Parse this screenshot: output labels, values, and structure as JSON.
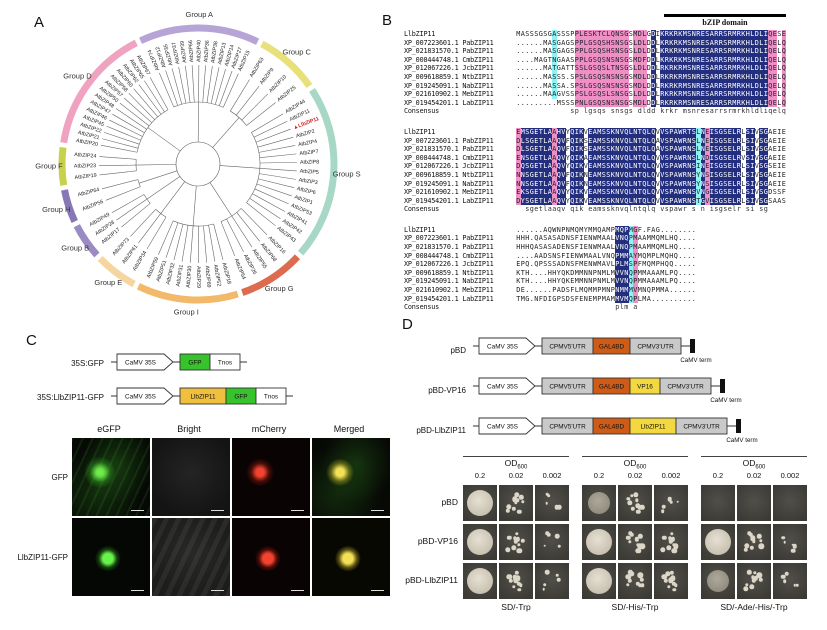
{
  "panelA": {
    "label": "A",
    "highlight_gene": "LlbZIP11",
    "highlight_color": "#d42020",
    "tree_groups": [
      {
        "name": "Group A",
        "color": "#b7a4d6",
        "start": -25,
        "end": 26,
        "genes": [
          "AtbZIP74",
          "AtbZIP12",
          "AtbZIP35",
          "AtbZIP37",
          "AtbZIP39",
          "AtbZIP66",
          "AtbZIP40",
          "AtbZIP36",
          "AtbZIP38",
          "AtbZIP13",
          "AtbZIP14",
          "AtbZIP27",
          "AtbZIP15"
        ]
      },
      {
        "name": "Group C",
        "color": "#e8e07a",
        "start": 28,
        "end": 55,
        "genes": [
          "AtbZIP63",
          "AtbZIP9",
          "AtbZIP10",
          "AtbZIP25"
        ]
      },
      {
        "name": "Group S",
        "color": "#a7d7c5",
        "start": 57,
        "end": 131,
        "genes": [
          "AtbZIP44",
          "AtbZIP11",
          "LlbZIP11",
          "AtbZIP2",
          "AtbZIP4",
          "AtbZIP7",
          "AtbZIP8",
          "AtbZIP5",
          "AtbZIP3",
          "AtbZIP6",
          "AtbZIP1",
          "AtbZIP53",
          "AtbZIP41",
          "AtbZIP42",
          "AtbZIP43"
        ]
      },
      {
        "name": "Group G",
        "color": "#dd6b4f",
        "start": 133,
        "end": 161,
        "genes": [
          "AtbZIP16",
          "AtbZIP68",
          "AtbZIP55",
          "AtbZIP26",
          "AtbZIP54"
        ]
      },
      {
        "name": "Group I",
        "color": "#f2b96a",
        "start": 163,
        "end": 206,
        "genes": [
          "AtbZIP18",
          "AtbZIP52",
          "AtbZIP69",
          "AtbZIP29",
          "AtbZIP30",
          "AtbZIP31",
          "AtbZIP32",
          "AtbZIP51",
          "AtbZIP59"
        ]
      },
      {
        "name": "Group E",
        "color": "#f6d6a0",
        "start": 208,
        "end": 226,
        "genes": [
          "AtbZIP34",
          "AtbZIP61",
          "AtbZIP73"
        ]
      },
      {
        "name": "Group B",
        "color": "#9a8cc2",
        "start": 228,
        "end": 243,
        "genes": [
          "AtbZIP17",
          "AtbZIP28",
          "AtbZIP49"
        ]
      },
      {
        "name": "Group H",
        "color": "#8877b5",
        "start": 245,
        "end": 259,
        "genes": [
          "AtbZIP56",
          "AtbZIP64"
        ]
      },
      {
        "name": "Group F",
        "color": "#c6d24c",
        "start": 261,
        "end": 277,
        "genes": [
          "AtbZIP19",
          "AtbZIP23",
          "AtbZIP24"
        ]
      },
      {
        "name": "Group D",
        "color": "#efa3c0",
        "start": 279,
        "end": 333,
        "genes": [
          "AtbZIP20",
          "AtbZIP21",
          "AtbZIP22",
          "AtbZIP45",
          "AtbZIP46",
          "AtbZIP47",
          "AtbZIP48",
          "AtbZIP50",
          "AtbZIP57",
          "AtbZIP58",
          "AtbZIP60",
          "AtbZIP62",
          "AtbZIP65",
          "AtbZIP67"
        ]
      }
    ]
  },
  "panelB": {
    "label": "B",
    "domain_label": "bZIP domain",
    "names": [
      "LlbZIP11",
      "XP_007223601.1 PabZIP11",
      "XP_021831570.1 PabZIP11",
      "XP_008444748.1 CmbZIP11",
      "XP_012067226.1 JcbZIP11",
      "XP_009618859.1 NtbZIP11",
      "XP_019245091.1 NabZIP11",
      "XP_021610902.1 MebZIP11",
      "XP_019454201.1 LabZIP11",
      "Consensus"
    ],
    "colors_legend": {
      "identity": "#232f7e",
      "similar_high": "#ef8fc6",
      "similar_low": "#8df3f3"
    },
    "blocks": [
      {
        "rows": [
          "MASSSGSGASSSPPLESKTCLQNSGSMDLGDIKRKRKMSNRESARRSRMRKHLDLIQESE",
          "......MASGAGSPPLGSQSHSNSGSLDLDDLKRKRKMSNRESARRSRMRKHLDLIQELQ",
          "......MASGAGSPPLGSQSHSNSGSLDLDDLKRKRKMSNRESARRSRMRKHLDLIQELQ",
          "....MAGTNGAASPPLGSQSNSNSGSMDFDDLKRKRKMSNRESARRSRMRKHLDLIQELQ",
          "......MATGATTSSLGSQSLTNSGSLDLDDLRKRKRMSNRESARRSRMRKHLDLIQELQ",
          "......MASSS.SPSLGSQSNSNSGSMDLDDLRKRKRMSNRESARRSRMRKHLDLIQELQ",
          "......MASSA.SPSLGSQSNSNSGSMDLDDLRKRKRMSNRESARRSRMRKHLDLIQELQ",
          "......MAAGVSSPSLGSQSLSNSGSLDLDDLRKRKRMSNRESARRSRMRKHLDLIQELQ",
          ".........MSSSPNLGSQSNSNSGSMDLDDLRKRKRMSNRESARRSRMRKHLDLIQELQ"
        ],
        "consensus": "            sp lgsqs snsgs dldd krkr msnresarrsrmrkhldliqelq",
        "colors": "wwwwwwwwcwwwwppppppppppppwpppwdwddddddddddddddddddddddddppwp"
      },
      {
        "rows": [
          "EMSGETLAAHVYQIKVEAMSSKNVQLNTQLQVVSPAWRTSLNEISGSELRLSIVSGAEIE",
          "DLSGETLAAQVFQIKSEAMSSKNVQLNTQLQAVSPAWRNSLNEISGSELRLSIVSGAEIE",
          "DLSGETLAAQVFQIKSEAMSSKNVQLNTQLQAVSPAWRNSLNEISGSELRLSIVSGAEIE",
          "ENSGETLAAQVYQIKAEAMSSKNVQLNTQLQVVSPAWRNSLNDISGSELRVSIVSGAEIE",
          "DQSGETLAAQVYQIKVEAMSSKNVQLNTQLQVVSPAWRNSINEISGSELRLSIVSGSEIE",
          "NNSGETLAAQVFQIKNEAMSSKNVQLNTQLQVVSPAWRNSYNSISGSELRLSIVSGAEIE",
          "NNSGETLAAQVFQIKNEAMSSKNVQLNTQLQVVSPAWRNSYNSISGSELRLSIVSGAEIE",
          "EKSGETLAAQVYQIKVEAMSSKNVQLNTQLQVVSPAWRNSVNGISGSELRLSIVSGDSSF",
          "DYSGETLAAQVYQIKVEAMSSKNVQLNTQLQVVSPAWRNSTGVISGSELRLSIVSGSAAS"
        ],
        "consensus": "  sgetlaaqv qik eamssknvqlntqlq vspawr s n isgselr si sg    ",
        "colors": "pdddddddpddwdddwdddddddddddddddwddddddddcdpdddddddwddwddwwww"
      },
      {
        "rows": [
          "......AQWNPNMQMYMMQAMPMQPMGF.FAG........",
          "HHH.QASASADNSFIENWMAALVNQPMAAMMQMLHQ....",
          "HHHQASASADENSFIENWMAALVNQPMAAMMQMLHQ....",
          "....AADSNSFIENWMAALVNQPMMAYMQMPLMQHQ....",
          "EPQ.QPSSSADNSFMENWMAVLPLMSPFMQMPHQQ.....",
          "KTH....HHYQKDMMNNPNMLMVVNQPMMAAAMLPQ....",
          "KTH....HHYQKEMMNNPNMLMVVNQPMMAAAMLPQ....",
          "DE......PADSFLMQMMPMNPNMMMVMNQPMMA......",
          "TMG.NFDIGPSDSFENEMPMAMMVMQPLMA.........."
        ],
        "consensus": "                      plm a             ",
        "colors": "wwwwwwwwwwwwwwwwwwwwwwdddcpwwwwwwwwwwwww"
      }
    ]
  },
  "panelC": {
    "label": "C",
    "constructs": [
      {
        "label": "35S:GFP",
        "parts": [
          {
            "kind": "arrow",
            "style": "white",
            "text": "CaMV 35S"
          },
          {
            "kind": "box",
            "style": "gfp",
            "text": "GFP"
          },
          {
            "kind": "box",
            "style": "white",
            "text": "Tnos"
          }
        ]
      },
      {
        "label": "35S:LlbZIP11-GFP",
        "parts": [
          {
            "kind": "arrow",
            "style": "white",
            "text": "CaMV 35S"
          },
          {
            "kind": "box",
            "style": "gene",
            "text": "LlbZIP11"
          },
          {
            "kind": "box",
            "style": "gfp",
            "text": "GFP"
          },
          {
            "kind": "box",
            "style": "white",
            "text": "Tnos"
          }
        ]
      }
    ],
    "col_headers": [
      "eGFP",
      "Bright",
      "mCherry",
      "Merged"
    ],
    "rows": [
      {
        "label": "GFP",
        "cells": [
          "green-diffuse",
          "bright-field",
          "red-spot",
          "merged-diffuse"
        ]
      },
      {
        "label": "LlbZIP11-GFP",
        "cells": [
          "green-dot",
          "bright-leaf",
          "red-dot",
          "yellow-dot"
        ]
      }
    ]
  },
  "panelD": {
    "label": "D",
    "constructs": [
      {
        "label": "pBD",
        "parts": [
          {
            "kind": "arrow",
            "style": "white",
            "text": "CaMV 35S"
          },
          {
            "kind": "box",
            "style": "utr",
            "text": "CPMV5'UTR"
          },
          {
            "kind": "box",
            "style": "gal4",
            "text": "GAL4BD"
          },
          {
            "kind": "box",
            "style": "utr",
            "text": "CPMV3'UTR"
          },
          {
            "kind": "term",
            "text": "CaMV term"
          }
        ]
      },
      {
        "label": "pBD-VP16",
        "parts": [
          {
            "kind": "arrow",
            "style": "white",
            "text": "CaMV 35S"
          },
          {
            "kind": "box",
            "style": "utr",
            "text": "CPMV5'UTR"
          },
          {
            "kind": "box",
            "style": "gal4",
            "text": "GAL4BD"
          },
          {
            "kind": "box",
            "style": "yellow",
            "text": "VP16"
          },
          {
            "kind": "box",
            "style": "utr",
            "text": "CPMV3'UTR"
          },
          {
            "kind": "term",
            "text": "CaMV term"
          }
        ]
      },
      {
        "label": "pBD-LlbZIP11",
        "parts": [
          {
            "kind": "arrow",
            "style": "white",
            "text": "CaMV 35S"
          },
          {
            "kind": "box",
            "style": "utr",
            "text": "CPMV5'UTR"
          },
          {
            "kind": "box",
            "style": "gal4",
            "text": "GAL4BD"
          },
          {
            "kind": "box",
            "style": "yellow",
            "text": "LlbZIP11"
          },
          {
            "kind": "box",
            "style": "utr",
            "text": "CPMV3'UTR"
          },
          {
            "kind": "term",
            "text": "CaMV term"
          }
        ]
      }
    ],
    "od_label": "OD",
    "od_sub": "600",
    "dilutions": [
      "0.2",
      "0.02",
      "0.002"
    ],
    "strains": [
      "pBD",
      "pBD-VP16",
      "pBD-LlbZIP11"
    ],
    "media": [
      {
        "label": "SD/-Trp",
        "growth": [
          [
            "confluent",
            "colonies",
            "sparse"
          ],
          [
            "confluent",
            "colonies",
            "sparse"
          ],
          [
            "confluent",
            "colonies",
            "sparse"
          ]
        ]
      },
      {
        "label": "SD/-His/-Trp",
        "growth": [
          [
            "patch",
            "colonies",
            "sparse"
          ],
          [
            "confluent",
            "colonies",
            "colonies"
          ],
          [
            "confluent",
            "colonies",
            "colonies"
          ]
        ]
      },
      {
        "label": "SD/-Ade/-His/-Trp",
        "growth": [
          [
            "none",
            "none",
            "none"
          ],
          [
            "confluent",
            "colonies",
            "sparse"
          ],
          [
            "patch",
            "colonies",
            "sparse"
          ]
        ]
      }
    ]
  },
  "construct_colors": {
    "white": "#ffffff",
    "utr": "#c9c9c9",
    "gal4": "#cf5c16",
    "yellow": "#f3d93f",
    "gfp": "#37c32b",
    "gene": "#f0bf3e",
    "term": "#111111"
  }
}
